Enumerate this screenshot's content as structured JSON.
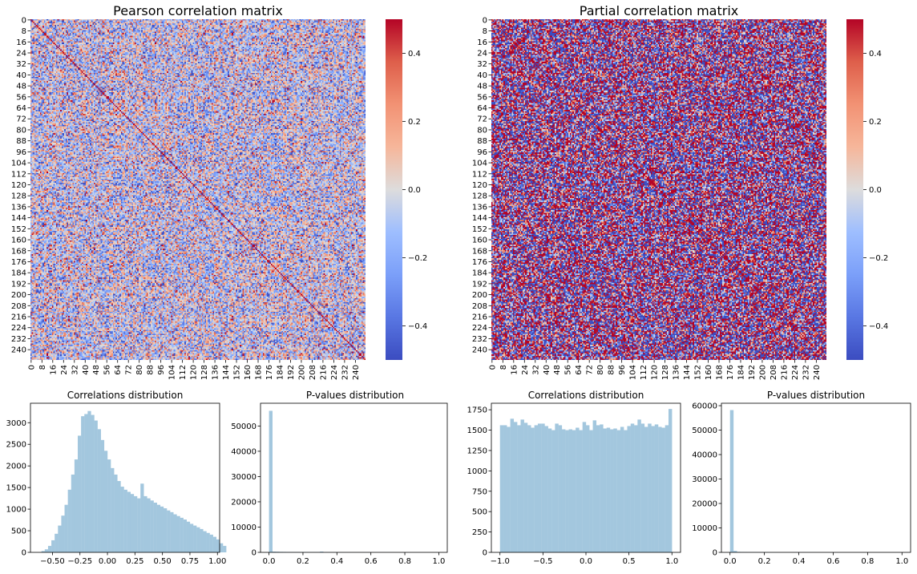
{
  "chart_data": [
    {
      "type": "heatmap",
      "title": "Pearson correlation matrix",
      "matrix_size": 248,
      "x_tick_labels": [
        "0",
        "8",
        "16",
        "24",
        "32",
        "40",
        "48",
        "56",
        "64",
        "72",
        "80",
        "88",
        "96",
        "104",
        "112",
        "120",
        "128",
        "136",
        "144",
        "152",
        "160",
        "168",
        "176",
        "184",
        "192",
        "200",
        "208",
        "216",
        "224",
        "232",
        "240"
      ],
      "y_tick_labels": [
        "0",
        "8",
        "16",
        "24",
        "32",
        "40",
        "48",
        "56",
        "64",
        "72",
        "80",
        "88",
        "96",
        "104",
        "112",
        "120",
        "128",
        "136",
        "144",
        "152",
        "160",
        "168",
        "176",
        "184",
        "192",
        "200",
        "208",
        "216",
        "224",
        "232",
        "240"
      ],
      "colorscale": "coolwarm",
      "vmin": -0.5,
      "vmax": 0.5,
      "colorbar_ticks": [
        "0.4",
        "0.2",
        "0.0",
        "−0.2",
        "−0.4"
      ],
      "colorbar_tick_values": [
        0.4,
        0.2,
        0.0,
        -0.2,
        -0.4
      ]
    },
    {
      "type": "heatmap",
      "title": "Partial correlation matrix",
      "matrix_size": 248,
      "x_tick_labels": [
        "0",
        "8",
        "16",
        "24",
        "32",
        "40",
        "48",
        "56",
        "64",
        "72",
        "80",
        "88",
        "96",
        "104",
        "112",
        "120",
        "128",
        "136",
        "144",
        "152",
        "160",
        "168",
        "176",
        "184",
        "192",
        "200",
        "208",
        "216",
        "224",
        "232",
        "240"
      ],
      "y_tick_labels": [
        "0",
        "8",
        "16",
        "24",
        "32",
        "40",
        "48",
        "56",
        "64",
        "72",
        "80",
        "88",
        "96",
        "104",
        "112",
        "120",
        "128",
        "136",
        "144",
        "152",
        "160",
        "168",
        "176",
        "184",
        "192",
        "200",
        "208",
        "216",
        "224",
        "232",
        "240"
      ],
      "colorscale": "coolwarm",
      "vmin": -0.5,
      "vmax": 0.5,
      "colorbar_ticks": [
        "0.4",
        "0.2",
        "0.0",
        "−0.2",
        "−0.4"
      ],
      "colorbar_tick_values": [
        0.4,
        0.2,
        0.0,
        -0.2,
        -0.4
      ]
    },
    {
      "type": "bar",
      "title": "Correlations distribution",
      "color": "#a3c7de",
      "xlim": [
        -0.7,
        1.02
      ],
      "ylim": [
        0,
        3450
      ],
      "x_ticks": [
        -0.5,
        -0.25,
        0.0,
        0.25,
        0.5,
        0.75,
        1.0
      ],
      "x_tick_labels": [
        "−0.50",
        "−0.25",
        "0.00",
        "0.25",
        "0.50",
        "0.75",
        "1.00"
      ],
      "y_ticks": [
        0,
        500,
        1000,
        1500,
        2000,
        2500,
        3000
      ],
      "y_tick_labels": [
        "0",
        "500",
        "1000",
        "1500",
        "2000",
        "2500",
        "3000"
      ],
      "bin_start": -0.6,
      "bin_width": 0.03,
      "values": [
        30,
        70,
        150,
        280,
        430,
        620,
        850,
        1100,
        1450,
        1800,
        2150,
        2700,
        3150,
        3200,
        3270,
        3180,
        3050,
        2850,
        2600,
        2350,
        2150,
        1950,
        1800,
        1650,
        1520,
        1450,
        1400,
        1350,
        1300,
        1250,
        1590,
        1300,
        1250,
        1200,
        1150,
        1100,
        1060,
        1020,
        970,
        930,
        880,
        840,
        800,
        760,
        710,
        660,
        620,
        580,
        540,
        490,
        450,
        410,
        360,
        300,
        210,
        150
      ]
    },
    {
      "type": "bar",
      "title": "P-values distribution",
      "color": "#a3c7de",
      "xlim": [
        -0.05,
        1.05
      ],
      "ylim": [
        0,
        59000
      ],
      "x_ticks": [
        0.0,
        0.2,
        0.4,
        0.6,
        0.8,
        1.0
      ],
      "x_tick_labels": [
        "0.0",
        "0.2",
        "0.4",
        "0.6",
        "0.8",
        "1.0"
      ],
      "y_ticks": [
        0,
        10000,
        20000,
        30000,
        40000,
        50000
      ],
      "y_tick_labels": [
        "0",
        "10000",
        "20000",
        "30000",
        "40000",
        "50000"
      ],
      "bin_start": 0.0,
      "bin_width": 0.02,
      "values": [
        56000,
        300,
        250,
        200,
        180,
        160,
        150,
        140,
        130,
        120,
        110,
        100,
        95,
        90,
        85,
        300,
        70,
        60,
        50,
        45,
        40,
        35,
        30,
        28,
        25,
        22,
        20,
        18,
        16,
        15,
        14,
        13,
        12,
        11,
        10,
        9,
        8,
        7,
        6,
        5,
        5,
        4,
        4,
        3,
        3,
        3,
        2,
        2,
        2,
        2
      ]
    },
    {
      "type": "bar",
      "title": "Correlations distribution",
      "color": "#a3c7de",
      "xlim": [
        -1.1,
        1.1
      ],
      "ylim": [
        0,
        1830
      ],
      "x_ticks": [
        -1.0,
        -0.5,
        0.0,
        0.5,
        1.0
      ],
      "x_tick_labels": [
        "−1.0",
        "−0.5",
        "0.0",
        "0.5",
        "1.0"
      ],
      "y_ticks": [
        0,
        250,
        500,
        750,
        1000,
        1250,
        1500,
        1750
      ],
      "y_tick_labels": [
        "0",
        "250",
        "500",
        "750",
        "1000",
        "1250",
        "1500",
        "1750"
      ],
      "bin_start": -1.0,
      "bin_width": 0.04,
      "values": [
        1560,
        1560,
        1540,
        1640,
        1600,
        1560,
        1630,
        1590,
        1560,
        1530,
        1560,
        1580,
        1580,
        1550,
        1520,
        1500,
        1580,
        1560,
        1510,
        1500,
        1510,
        1500,
        1530,
        1500,
        1600,
        1560,
        1500,
        1620,
        1560,
        1570,
        1520,
        1530,
        1510,
        1520,
        1500,
        1540,
        1500,
        1550,
        1580,
        1560,
        1630,
        1580,
        1540,
        1580,
        1550,
        1570,
        1540,
        1530,
        1560,
        1760
      ]
    },
    {
      "type": "bar",
      "title": "P-values distribution",
      "color": "#a3c7de",
      "xlim": [
        -0.05,
        1.05
      ],
      "ylim": [
        0,
        61000
      ],
      "x_ticks": [
        0.0,
        0.2,
        0.4,
        0.6,
        0.8,
        1.0
      ],
      "x_tick_labels": [
        "0.0",
        "0.2",
        "0.4",
        "0.6",
        "0.8",
        "1.0"
      ],
      "y_ticks": [
        0,
        10000,
        20000,
        30000,
        40000,
        50000,
        60000
      ],
      "y_tick_labels": [
        "0",
        "10000",
        "20000",
        "30000",
        "40000",
        "50000",
        "60000"
      ],
      "bin_start": 0.0,
      "bin_width": 0.02,
      "values": [
        58200,
        600,
        200,
        150,
        120,
        100,
        90,
        80,
        70,
        60,
        50,
        45,
        40,
        35,
        30,
        25,
        22,
        20,
        18,
        16,
        14,
        12,
        10,
        9,
        8,
        7,
        6,
        5,
        5,
        4,
        4,
        3,
        3,
        3,
        2,
        2,
        2,
        2,
        2,
        1,
        1,
        1,
        1,
        1,
        1,
        1,
        1,
        1,
        1,
        1
      ]
    }
  ]
}
